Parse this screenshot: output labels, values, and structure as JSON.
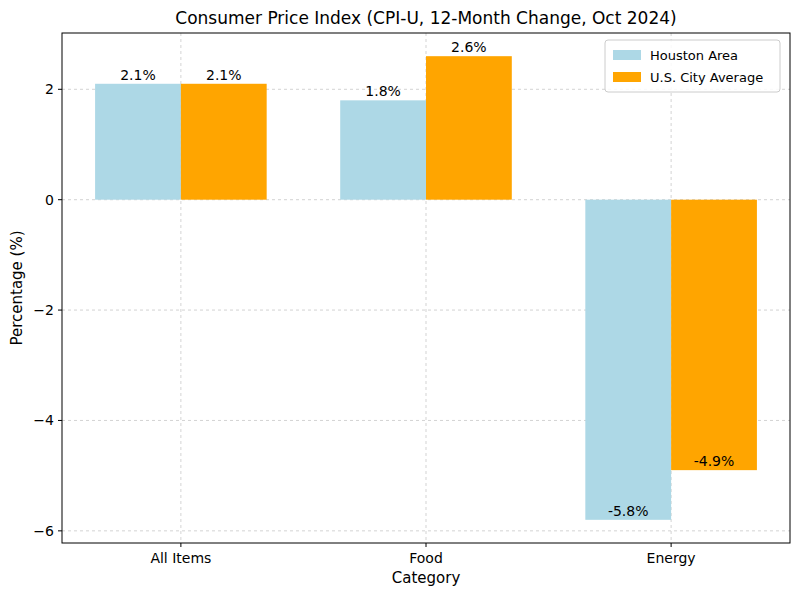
{
  "chart_data": {
    "type": "bar",
    "title": "Consumer Price Index (CPI-U, 12-Month Change, Oct 2024)",
    "x_label": "Category",
    "y_label": "Percentage (%)",
    "categories": [
      "All Items",
      "Food",
      "Energy"
    ],
    "series": [
      {
        "name": "Houston Area",
        "color": "#add8e6",
        "values": [
          2.1,
          1.8,
          -5.8
        ],
        "value_labels": [
          "2.1%",
          "1.8%",
          "-5.8%"
        ]
      },
      {
        "name": "U.S. City Average",
        "color": "#ffa500",
        "values": [
          2.1,
          2.6,
          -4.9
        ],
        "value_labels": [
          "2.1%",
          "2.6%",
          "-4.9%"
        ]
      }
    ],
    "ylim": [
      -6.22,
      3.02
    ],
    "yticks": [
      {
        "value": -6,
        "label": "−6"
      },
      {
        "value": -4,
        "label": "−4"
      },
      {
        "value": -2,
        "label": "−2"
      },
      0,
      2
    ],
    "grid": true,
    "legend": "upper right",
    "data_labels": true
  }
}
